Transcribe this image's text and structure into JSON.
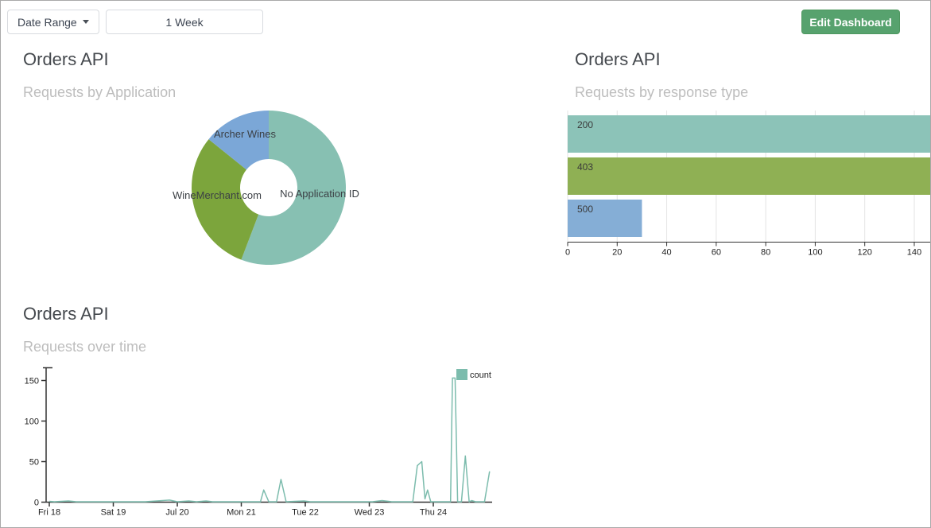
{
  "header": {
    "date_range_label": "Date Range",
    "range_value": "1 Week",
    "edit_button_label": "Edit Dashboard",
    "edit_button_color": "#57a26e"
  },
  "panels": {
    "donut": {
      "title": "Orders API",
      "subtitle": "Requests by Application"
    },
    "bars": {
      "title": "Orders API",
      "subtitle": "Requests by response type"
    },
    "line": {
      "title": "Orders API",
      "subtitle": "Requests over time"
    }
  },
  "chart_data": [
    {
      "id": "requests-by-application",
      "type": "pie",
      "donut": true,
      "title": "Requests by Application",
      "start_angle_deg": 0,
      "clockwise": true,
      "segments": [
        {
          "label": "No Application ID",
          "percent": 55.8,
          "color": "#87c0b2",
          "label_offset": [
            64,
            12
          ]
        },
        {
          "label": "WineMerchant.com",
          "percent": 30.0,
          "color": "#7ca53c",
          "label_offset": [
            -65,
            14
          ]
        },
        {
          "label": "Archer Wines",
          "percent": 14.2,
          "color": "#7ba7d7",
          "label_offset": [
            -30,
            -63
          ]
        }
      ],
      "label_color": "#3c4045"
    },
    {
      "id": "requests-by-response-type",
      "type": "bar",
      "orientation": "horizontal",
      "title": "Requests by response type",
      "categories": [
        "200",
        "403",
        "500"
      ],
      "values": [
        147,
        147,
        30
      ],
      "clipped": [
        true,
        true,
        false
      ],
      "colors": [
        "#8cc3b8",
        "#8fb054",
        "#85aed6"
      ],
      "xticks": [
        0,
        20,
        40,
        60,
        80,
        100,
        120,
        140
      ],
      "xlim": [
        0,
        147
      ],
      "grid": true,
      "note": "200 and 403 bars extend past the visible axis maximum (clipped at panel edge)"
    },
    {
      "id": "requests-over-time",
      "type": "line",
      "title": "Requests over time",
      "x_unit": "days from Fri 18 (Jul)",
      "xticks": [
        {
          "d": 0,
          "label": "Fri 18"
        },
        {
          "d": 1,
          "label": "Sat 19"
        },
        {
          "d": 2,
          "label": "Jul 20"
        },
        {
          "d": 3,
          "label": "Mon 21"
        },
        {
          "d": 4,
          "label": "Tue 22"
        },
        {
          "d": 5,
          "label": "Wed 23"
        },
        {
          "d": 6,
          "label": "Thu 24"
        }
      ],
      "yticks": [
        0,
        50,
        100,
        150
      ],
      "ylim": [
        0,
        165
      ],
      "xlim": [
        0,
        6.95
      ],
      "grid": false,
      "legend": {
        "label": "count",
        "position": "top-right"
      },
      "series": [
        {
          "name": "count",
          "color": "#7cbcad",
          "points": [
            [
              0,
              1
            ],
            [
              0.08,
              0.5
            ],
            [
              0.3,
              1.5
            ],
            [
              0.42,
              0.5
            ],
            [
              0.9,
              0.5
            ],
            [
              1.5,
              0.5
            ],
            [
              1.88,
              2.5
            ],
            [
              2.0,
              0.5
            ],
            [
              2.18,
              1.5
            ],
            [
              2.3,
              0.5
            ],
            [
              2.45,
              1.5
            ],
            [
              2.55,
              0.5
            ],
            [
              3.2,
              0.5
            ],
            [
              3.3,
              0.5
            ],
            [
              3.35,
              15
            ],
            [
              3.43,
              0.5
            ],
            [
              3.55,
              0.5
            ],
            [
              3.62,
              28
            ],
            [
              3.7,
              0.5
            ],
            [
              3.98,
              1.5
            ],
            [
              4.08,
              0.5
            ],
            [
              5.05,
              0.5
            ],
            [
              5.2,
              2
            ],
            [
              5.35,
              0.5
            ],
            [
              5.68,
              0.5
            ],
            [
              5.75,
              45
            ],
            [
              5.82,
              50
            ],
            [
              5.87,
              4
            ],
            [
              5.91,
              15
            ],
            [
              5.96,
              0.5
            ],
            [
              6.27,
              0.5
            ],
            [
              6.3,
              153
            ],
            [
              6.34,
              153
            ],
            [
              6.38,
              0.5
            ],
            [
              6.44,
              0.5
            ],
            [
              6.5,
              57
            ],
            [
              6.56,
              0.5
            ],
            [
              6.6,
              2
            ],
            [
              6.66,
              0.5
            ],
            [
              6.8,
              0.5
            ],
            [
              6.88,
              38
            ]
          ]
        }
      ]
    }
  ],
  "style": {
    "axis_color": "#333333",
    "tick_label_color": "#222222",
    "grid_color": "#e4e4e4",
    "bar_label_color": "#3a3a3a"
  }
}
